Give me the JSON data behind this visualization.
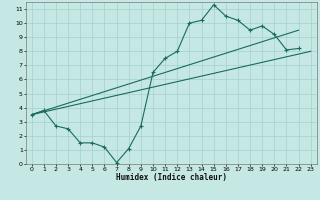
{
  "xlabel": "Humidex (Indice chaleur)",
  "ylabel": "",
  "bg_color": "#c5e8e5",
  "grid_color": "#a8d4d0",
  "line_color": "#1a6b5a",
  "xlim": [
    -0.5,
    23.5
  ],
  "ylim": [
    0,
    11.5
  ],
  "xticks": [
    0,
    1,
    2,
    3,
    4,
    5,
    6,
    7,
    8,
    9,
    10,
    11,
    12,
    13,
    14,
    15,
    16,
    17,
    18,
    19,
    20,
    21,
    22,
    23
  ],
  "yticks": [
    0,
    1,
    2,
    3,
    4,
    5,
    6,
    7,
    8,
    9,
    10,
    11
  ],
  "line1_x": [
    0,
    1,
    2,
    3,
    4,
    5,
    6,
    7,
    8,
    9,
    10,
    11,
    12,
    13,
    14,
    15,
    16,
    17,
    18,
    19,
    20,
    21,
    22
  ],
  "line1_y": [
    3.5,
    3.8,
    2.7,
    2.5,
    1.5,
    1.5,
    1.2,
    0.1,
    1.1,
    2.7,
    6.5,
    7.5,
    8.0,
    10.0,
    10.2,
    11.3,
    10.5,
    10.2,
    9.5,
    9.8,
    9.2,
    8.1,
    8.2
  ],
  "line2_x": [
    0,
    22
  ],
  "line2_y": [
    3.5,
    9.5
  ],
  "line3_x": [
    0,
    23
  ],
  "line3_y": [
    3.5,
    8.0
  ]
}
